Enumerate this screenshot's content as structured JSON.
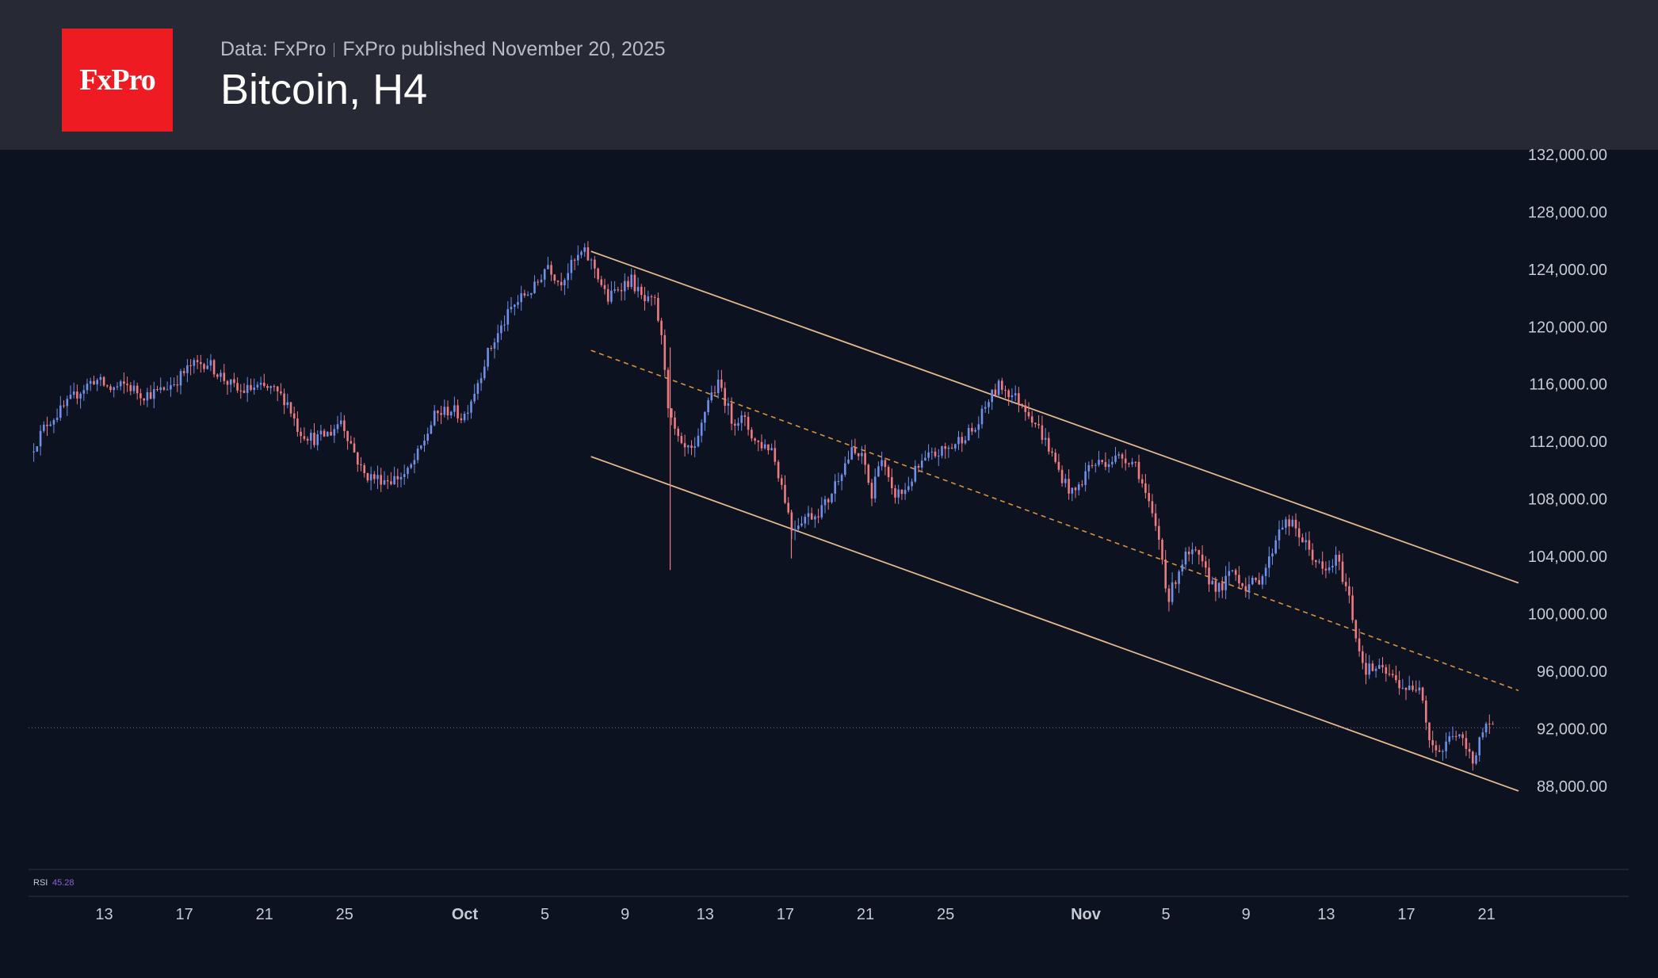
{
  "header": {
    "logo_text": "FxPro",
    "data_source": "Data: FxPro",
    "published": "FxPro published November 20, 2025",
    "title": "Bitcoin, H4"
  },
  "colors": {
    "background": "#0c1220",
    "header_background": "#272a35",
    "logo_red": "#ee1c22",
    "candle_up": "#6f8fe8",
    "candle_down": "#f07a7e",
    "channel_line": "#e3b88c",
    "midline_dashed": "#d9933d",
    "price_line": "#7a6a8a",
    "axis_text": "#c7cad2",
    "rsi_value": "#8e63d6"
  },
  "indicator": {
    "name": "RSI",
    "value": "45.28"
  },
  "chart_data": {
    "type": "candlestick",
    "title": "Bitcoin, H4",
    "xlabel": "",
    "ylabel": "",
    "ylim": [
      86000,
      132000
    ],
    "y_ticks": [
      "132,000.00",
      "128,000.00",
      "124,000.00",
      "120,000.00",
      "116,000.00",
      "112,000.00",
      "108,000.00",
      "104,000.00",
      "100,000.00",
      "96,000.00",
      "92,000.00",
      "88,000.00"
    ],
    "x_ticks": [
      {
        "label": "13",
        "day": 13
      },
      {
        "label": "17",
        "day": 17
      },
      {
        "label": "21",
        "day": 21
      },
      {
        "label": "25",
        "day": 25
      },
      {
        "label": "Oct",
        "day": 31
      },
      {
        "label": "5",
        "day": 35
      },
      {
        "label": "9",
        "day": 39
      },
      {
        "label": "13",
        "day": 43
      },
      {
        "label": "17",
        "day": 47
      },
      {
        "label": "21",
        "day": 51
      },
      {
        "label": "25",
        "day": 55
      },
      {
        "label": "Nov",
        "day": 62
      },
      {
        "label": "5",
        "day": 66
      },
      {
        "label": "9",
        "day": 70
      },
      {
        "label": "13",
        "day": 74
      },
      {
        "label": "17",
        "day": 78
      },
      {
        "label": "21",
        "day": 82
      }
    ],
    "x_range_days": [
      9.3,
      83.6
    ],
    "price_series": [
      [
        9.4,
        111200
      ],
      [
        10.2,
        113200
      ],
      [
        11.0,
        114200
      ],
      [
        11.8,
        115400
      ],
      [
        12.6,
        116300
      ],
      [
        13.4,
        115600
      ],
      [
        14.2,
        115900
      ],
      [
        15.0,
        115200
      ],
      [
        15.8,
        115400
      ],
      [
        16.6,
        116100
      ],
      [
        17.4,
        117200
      ],
      [
        18.2,
        117500
      ],
      [
        19.0,
        116400
      ],
      [
        19.8,
        115400
      ],
      [
        20.6,
        115700
      ],
      [
        21.4,
        115600
      ],
      [
        22.2,
        114800
      ],
      [
        22.8,
        112700
      ],
      [
        23.6,
        112100
      ],
      [
        24.4,
        112600
      ],
      [
        24.9,
        113500
      ],
      [
        25.4,
        111800
      ],
      [
        26.0,
        109700
      ],
      [
        26.6,
        109400
      ],
      [
        27.4,
        109300
      ],
      [
        28.2,
        109700
      ],
      [
        28.8,
        111200
      ],
      [
        29.6,
        113800
      ],
      [
        30.4,
        114200
      ],
      [
        31.0,
        113600
      ],
      [
        31.6,
        115600
      ],
      [
        32.2,
        118000
      ],
      [
        32.8,
        119600
      ],
      [
        33.4,
        121200
      ],
      [
        34.0,
        122100
      ],
      [
        34.6,
        122700
      ],
      [
        35.2,
        124400
      ],
      [
        35.8,
        123000
      ],
      [
        36.4,
        124200
      ],
      [
        37.0,
        125200
      ],
      [
        37.6,
        124000
      ],
      [
        38.2,
        121800
      ],
      [
        38.8,
        122800
      ],
      [
        39.4,
        123200
      ],
      [
        40.0,
        121700
      ],
      [
        40.6,
        121600
      ],
      [
        41.0,
        118200
      ],
      [
        41.3,
        113600
      ],
      [
        41.9,
        111400
      ],
      [
        42.6,
        111200
      ],
      [
        43.2,
        114900
      ],
      [
        43.8,
        116000
      ],
      [
        44.4,
        113500
      ],
      [
        45.0,
        113500
      ],
      [
        45.6,
        111900
      ],
      [
        46.4,
        111500
      ],
      [
        47.0,
        108400
      ],
      [
        47.4,
        105900
      ],
      [
        48.0,
        106700
      ],
      [
        48.6,
        106900
      ],
      [
        49.2,
        107800
      ],
      [
        49.8,
        109800
      ],
      [
        50.4,
        111200
      ],
      [
        51.0,
        110700
      ],
      [
        51.4,
        108000
      ],
      [
        51.8,
        111200
      ],
      [
        52.4,
        108300
      ],
      [
        53.0,
        108400
      ],
      [
        53.6,
        109900
      ],
      [
        54.2,
        110800
      ],
      [
        54.8,
        111200
      ],
      [
        55.4,
        111600
      ],
      [
        56.0,
        112400
      ],
      [
        56.6,
        112800
      ],
      [
        57.2,
        114800
      ],
      [
        57.8,
        115900
      ],
      [
        58.4,
        115200
      ],
      [
        59.0,
        114500
      ],
      [
        59.6,
        113200
      ],
      [
        60.2,
        111600
      ],
      [
        60.8,
        109700
      ],
      [
        61.4,
        108300
      ],
      [
        61.8,
        108900
      ],
      [
        62.2,
        110200
      ],
      [
        62.8,
        110500
      ],
      [
        63.4,
        110700
      ],
      [
        64.0,
        110900
      ],
      [
        64.6,
        110400
      ],
      [
        65.2,
        107600
      ],
      [
        65.8,
        104800
      ],
      [
        66.2,
        100800
      ],
      [
        66.6,
        102600
      ],
      [
        67.0,
        103900
      ],
      [
        67.6,
        104100
      ],
      [
        68.2,
        102400
      ],
      [
        68.8,
        101600
      ],
      [
        69.4,
        103000
      ],
      [
        70.0,
        101900
      ],
      [
        70.6,
        102100
      ],
      [
        71.2,
        103500
      ],
      [
        71.8,
        106300
      ],
      [
        72.4,
        106100
      ],
      [
        72.8,
        105300
      ],
      [
        73.4,
        104000
      ],
      [
        74.0,
        102700
      ],
      [
        74.6,
        103800
      ],
      [
        75.2,
        101300
      ],
      [
        75.6,
        98200
      ],
      [
        76.0,
        96100
      ],
      [
        76.6,
        96100
      ],
      [
        77.2,
        95700
      ],
      [
        77.8,
        95000
      ],
      [
        78.4,
        94500
      ],
      [
        78.8,
        95300
      ],
      [
        79.2,
        91300
      ],
      [
        79.8,
        90200
      ],
      [
        80.4,
        91700
      ],
      [
        80.9,
        91000
      ],
      [
        81.4,
        89600
      ],
      [
        81.8,
        91700
      ],
      [
        82.3,
        92000
      ]
    ],
    "spikes": [
      {
        "day": 41.25,
        "low": 103000,
        "high": 118500
      },
      {
        "day": 47.3,
        "low": 103800,
        "high": 107200
      }
    ],
    "last_price": 92000,
    "channel": {
      "upper": {
        "from": [
          37.3,
          125200
        ],
        "to": [
          83.6,
          102100
        ]
      },
      "middle": {
        "from": [
          37.3,
          118300
        ],
        "to": [
          83.6,
          94600
        ]
      },
      "lower": {
        "from": [
          37.3,
          110900
        ],
        "to": [
          83.6,
          87600
        ]
      }
    }
  }
}
